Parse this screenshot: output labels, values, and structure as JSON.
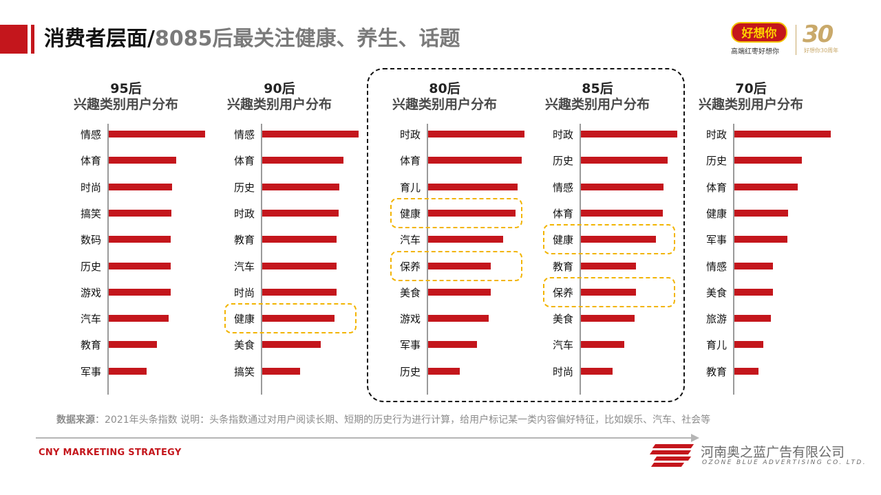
{
  "title": {
    "main": "消费者层面/",
    "sub": "8085后最关注健康、养生、话题"
  },
  "brand": {
    "name": "好想你",
    "tagline": "高端红枣好想你",
    "anniversary_number": "30",
    "anniversary_text": "好想你30周年"
  },
  "colors": {
    "accent": "#c4161c",
    "highlight": "#f2b400",
    "axis": "#9a9a9a"
  },
  "chart_data": [
    {
      "type": "bar",
      "orientation": "horizontal",
      "title": "95后",
      "subtitle": "兴趣类别用户分布",
      "categories": [
        "情感",
        "体育",
        "时尚",
        "搞笑",
        "数码",
        "历史",
        "游戏",
        "汽车",
        "教育",
        "军事"
      ],
      "values": [
        100,
        70,
        66,
        65,
        64,
        64,
        64,
        62,
        50,
        39
      ],
      "highlight": []
    },
    {
      "type": "bar",
      "orientation": "horizontal",
      "title": "90后",
      "subtitle": "兴趣类别用户分布",
      "categories": [
        "情感",
        "体育",
        "历史",
        "时政",
        "教育",
        "汽车",
        "时尚",
        "健康",
        "美食",
        "搞笑"
      ],
      "values": [
        100,
        84,
        80,
        79,
        77,
        77,
        77,
        75,
        61,
        39
      ],
      "highlight": [
        "健康"
      ]
    },
    {
      "type": "bar",
      "orientation": "horizontal",
      "title": "80后",
      "subtitle": "兴趣类别用户分布",
      "categories": [
        "时政",
        "体育",
        "育儿",
        "健康",
        "汽车",
        "保养",
        "美食",
        "游戏",
        "军事",
        "历史"
      ],
      "values": [
        100,
        97,
        93,
        91,
        78,
        65,
        65,
        63,
        51,
        33
      ],
      "highlight": [
        "健康",
        "保养"
      ]
    },
    {
      "type": "bar",
      "orientation": "horizontal",
      "title": "85后",
      "subtitle": "兴趣类别用户分布",
      "categories": [
        "时政",
        "历史",
        "情感",
        "体育",
        "健康",
        "教育",
        "保养",
        "美食",
        "汽车",
        "时尚"
      ],
      "values": [
        100,
        90,
        86,
        85,
        78,
        57,
        57,
        56,
        45,
        33
      ],
      "highlight": [
        "健康",
        "保养"
      ]
    },
    {
      "type": "bar",
      "orientation": "horizontal",
      "title": "70后",
      "subtitle": "兴趣类别用户分布",
      "categories": [
        "时政",
        "历史",
        "体育",
        "健康",
        "军事",
        "情感",
        "美食",
        "旅游",
        "育儿",
        "教育"
      ],
      "values": [
        100,
        70,
        66,
        56,
        55,
        40,
        40,
        38,
        30,
        25
      ],
      "highlight": []
    }
  ],
  "source": {
    "label": "数据来源",
    "text": "：2021年头条指数 说明：头条指数通过对用户阅读长期、短期的历史行为进行计算，给用户标记某一类内容偏好特征，比如娱乐、汽车、社会等"
  },
  "footer": {
    "left": "CNY MARKETING STRATEGY",
    "company_cn": "河南奥之蓝广告有限公司",
    "company_en": "OZONE BLUE ADVERTISING CO. LTD."
  }
}
